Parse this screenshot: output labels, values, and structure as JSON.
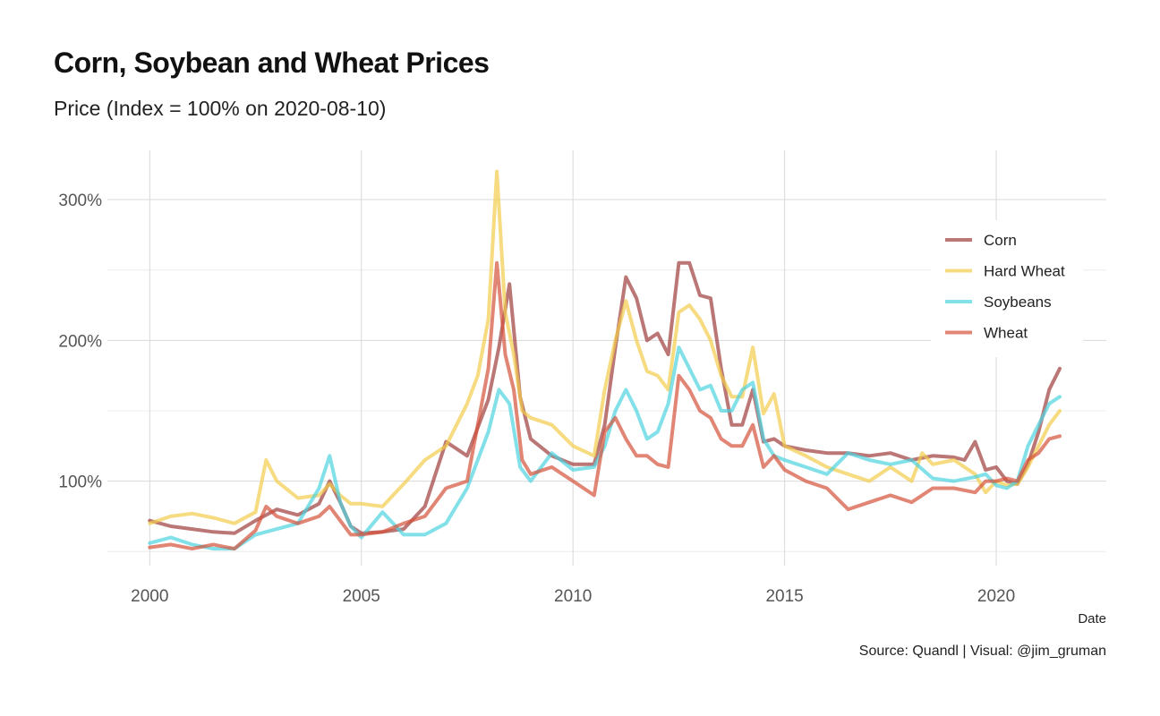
{
  "title": "Corn, Soybean and Wheat Prices",
  "subtitle": "Price (Index = 100% on 2020-08-10)",
  "caption": "Source: Quandl | Visual: @jim_gruman",
  "chart_data": {
    "type": "line",
    "xlabel": "Date",
    "ylabel": "",
    "x_ticks": [
      2000,
      2005,
      2010,
      2015,
      2020
    ],
    "y_ticks": [
      100,
      200,
      300
    ],
    "y_tick_labels": [
      "100%",
      "200%",
      "300%"
    ],
    "xlim": [
      1999.0,
      2022.6
    ],
    "ylim": [
      40,
      335
    ],
    "grid": true,
    "legend_position": "top-right",
    "series": [
      {
        "name": "Corn",
        "color": "#9E3D3A",
        "points": [
          [
            2000.0,
            72
          ],
          [
            2000.5,
            68
          ],
          [
            2001.0,
            66
          ],
          [
            2001.5,
            64
          ],
          [
            2002.0,
            63
          ],
          [
            2002.5,
            72
          ],
          [
            2003.0,
            80
          ],
          [
            2003.5,
            76
          ],
          [
            2004.0,
            84
          ],
          [
            2004.25,
            100
          ],
          [
            2004.5,
            85
          ],
          [
            2004.75,
            68
          ],
          [
            2005.0,
            63
          ],
          [
            2005.5,
            64
          ],
          [
            2006.0,
            66
          ],
          [
            2006.5,
            82
          ],
          [
            2007.0,
            128
          ],
          [
            2007.5,
            118
          ],
          [
            2008.0,
            158
          ],
          [
            2008.25,
            195
          ],
          [
            2008.5,
            240
          ],
          [
            2008.75,
            160
          ],
          [
            2009.0,
            130
          ],
          [
            2009.5,
            118
          ],
          [
            2010.0,
            112
          ],
          [
            2010.5,
            112
          ],
          [
            2010.75,
            140
          ],
          [
            2011.0,
            195
          ],
          [
            2011.25,
            245
          ],
          [
            2011.5,
            230
          ],
          [
            2011.75,
            200
          ],
          [
            2012.0,
            205
          ],
          [
            2012.25,
            190
          ],
          [
            2012.5,
            255
          ],
          [
            2012.75,
            255
          ],
          [
            2013.0,
            232
          ],
          [
            2013.25,
            230
          ],
          [
            2013.5,
            180
          ],
          [
            2013.75,
            140
          ],
          [
            2014.0,
            140
          ],
          [
            2014.25,
            165
          ],
          [
            2014.5,
            128
          ],
          [
            2014.75,
            130
          ],
          [
            2015.0,
            125
          ],
          [
            2015.5,
            122
          ],
          [
            2016.0,
            120
          ],
          [
            2016.5,
            120
          ],
          [
            2017.0,
            118
          ],
          [
            2017.5,
            120
          ],
          [
            2018.0,
            115
          ],
          [
            2018.5,
            118
          ],
          [
            2019.0,
            117
          ],
          [
            2019.25,
            115
          ],
          [
            2019.5,
            128
          ],
          [
            2019.75,
            108
          ],
          [
            2020.0,
            110
          ],
          [
            2020.25,
            100
          ],
          [
            2020.5,
            98
          ],
          [
            2020.75,
            112
          ],
          [
            2021.0,
            135
          ],
          [
            2021.25,
            165
          ],
          [
            2021.5,
            180
          ]
        ]
      },
      {
        "name": "Hard Wheat",
        "color": "#F2CC4C",
        "points": [
          [
            2000.0,
            70
          ],
          [
            2000.5,
            75
          ],
          [
            2001.0,
            77
          ],
          [
            2001.5,
            74
          ],
          [
            2002.0,
            70
          ],
          [
            2002.5,
            78
          ],
          [
            2002.75,
            115
          ],
          [
            2003.0,
            100
          ],
          [
            2003.5,
            88
          ],
          [
            2004.0,
            90
          ],
          [
            2004.25,
            98
          ],
          [
            2004.5,
            90
          ],
          [
            2004.75,
            84
          ],
          [
            2005.0,
            84
          ],
          [
            2005.5,
            82
          ],
          [
            2006.0,
            98
          ],
          [
            2006.5,
            115
          ],
          [
            2007.0,
            125
          ],
          [
            2007.5,
            155
          ],
          [
            2007.75,
            175
          ],
          [
            2008.0,
            215
          ],
          [
            2008.2,
            320
          ],
          [
            2008.4,
            220
          ],
          [
            2008.6,
            190
          ],
          [
            2008.8,
            150
          ],
          [
            2009.0,
            145
          ],
          [
            2009.5,
            140
          ],
          [
            2010.0,
            125
          ],
          [
            2010.5,
            118
          ],
          [
            2010.75,
            165
          ],
          [
            2011.0,
            200
          ],
          [
            2011.25,
            228
          ],
          [
            2011.5,
            200
          ],
          [
            2011.75,
            178
          ],
          [
            2012.0,
            175
          ],
          [
            2012.25,
            165
          ],
          [
            2012.5,
            220
          ],
          [
            2012.75,
            225
          ],
          [
            2013.0,
            215
          ],
          [
            2013.25,
            200
          ],
          [
            2013.5,
            175
          ],
          [
            2013.75,
            160
          ],
          [
            2014.0,
            160
          ],
          [
            2014.25,
            195
          ],
          [
            2014.5,
            148
          ],
          [
            2014.75,
            162
          ],
          [
            2015.0,
            125
          ],
          [
            2015.5,
            118
          ],
          [
            2016.0,
            110
          ],
          [
            2016.5,
            105
          ],
          [
            2017.0,
            100
          ],
          [
            2017.5,
            110
          ],
          [
            2018.0,
            100
          ],
          [
            2018.25,
            120
          ],
          [
            2018.5,
            112
          ],
          [
            2019.0,
            115
          ],
          [
            2019.5,
            105
          ],
          [
            2019.75,
            92
          ],
          [
            2020.0,
            100
          ],
          [
            2020.25,
            97
          ],
          [
            2020.5,
            98
          ],
          [
            2020.75,
            110
          ],
          [
            2021.0,
            125
          ],
          [
            2021.25,
            140
          ],
          [
            2021.5,
            150
          ]
        ]
      },
      {
        "name": "Soybeans",
        "color": "#4DD3E0",
        "points": [
          [
            2000.0,
            56
          ],
          [
            2000.5,
            60
          ],
          [
            2001.0,
            55
          ],
          [
            2001.5,
            52
          ],
          [
            2002.0,
            52
          ],
          [
            2002.5,
            62
          ],
          [
            2003.0,
            66
          ],
          [
            2003.5,
            70
          ],
          [
            2004.0,
            95
          ],
          [
            2004.25,
            118
          ],
          [
            2004.5,
            85
          ],
          [
            2004.75,
            68
          ],
          [
            2005.0,
            60
          ],
          [
            2005.5,
            78
          ],
          [
            2006.0,
            62
          ],
          [
            2006.5,
            62
          ],
          [
            2007.0,
            70
          ],
          [
            2007.5,
            95
          ],
          [
            2008.0,
            135
          ],
          [
            2008.25,
            165
          ],
          [
            2008.5,
            155
          ],
          [
            2008.75,
            110
          ],
          [
            2009.0,
            100
          ],
          [
            2009.5,
            120
          ],
          [
            2010.0,
            108
          ],
          [
            2010.5,
            110
          ],
          [
            2010.75,
            125
          ],
          [
            2011.0,
            150
          ],
          [
            2011.25,
            165
          ],
          [
            2011.5,
            150
          ],
          [
            2011.75,
            130
          ],
          [
            2012.0,
            135
          ],
          [
            2012.25,
            155
          ],
          [
            2012.5,
            195
          ],
          [
            2012.75,
            180
          ],
          [
            2013.0,
            165
          ],
          [
            2013.25,
            168
          ],
          [
            2013.5,
            150
          ],
          [
            2013.75,
            150
          ],
          [
            2014.0,
            165
          ],
          [
            2014.25,
            170
          ],
          [
            2014.5,
            130
          ],
          [
            2014.75,
            118
          ],
          [
            2015.0,
            115
          ],
          [
            2015.5,
            110
          ],
          [
            2016.0,
            105
          ],
          [
            2016.5,
            120
          ],
          [
            2017.0,
            115
          ],
          [
            2017.5,
            112
          ],
          [
            2018.0,
            115
          ],
          [
            2018.5,
            102
          ],
          [
            2019.0,
            100
          ],
          [
            2019.5,
            103
          ],
          [
            2019.75,
            105
          ],
          [
            2020.0,
            97
          ],
          [
            2020.25,
            95
          ],
          [
            2020.5,
            100
          ],
          [
            2020.75,
            125
          ],
          [
            2021.0,
            140
          ],
          [
            2021.25,
            155
          ],
          [
            2021.5,
            160
          ]
        ]
      },
      {
        "name": "Wheat",
        "color": "#D4513B",
        "points": [
          [
            2000.0,
            53
          ],
          [
            2000.5,
            55
          ],
          [
            2001.0,
            52
          ],
          [
            2001.5,
            55
          ],
          [
            2002.0,
            52
          ],
          [
            2002.5,
            65
          ],
          [
            2002.75,
            82
          ],
          [
            2003.0,
            75
          ],
          [
            2003.5,
            70
          ],
          [
            2004.0,
            75
          ],
          [
            2004.25,
            82
          ],
          [
            2004.5,
            72
          ],
          [
            2004.75,
            62
          ],
          [
            2005.0,
            62
          ],
          [
            2005.5,
            64
          ],
          [
            2006.0,
            70
          ],
          [
            2006.5,
            75
          ],
          [
            2007.0,
            95
          ],
          [
            2007.5,
            100
          ],
          [
            2008.0,
            180
          ],
          [
            2008.2,
            255
          ],
          [
            2008.4,
            190
          ],
          [
            2008.6,
            165
          ],
          [
            2008.8,
            115
          ],
          [
            2009.0,
            105
          ],
          [
            2009.5,
            110
          ],
          [
            2010.0,
            100
          ],
          [
            2010.5,
            90
          ],
          [
            2010.75,
            135
          ],
          [
            2011.0,
            145
          ],
          [
            2011.25,
            130
          ],
          [
            2011.5,
            118
          ],
          [
            2011.75,
            118
          ],
          [
            2012.0,
            112
          ],
          [
            2012.25,
            110
          ],
          [
            2012.5,
            175
          ],
          [
            2012.75,
            165
          ],
          [
            2013.0,
            150
          ],
          [
            2013.25,
            145
          ],
          [
            2013.5,
            130
          ],
          [
            2013.75,
            125
          ],
          [
            2014.0,
            125
          ],
          [
            2014.25,
            140
          ],
          [
            2014.5,
            110
          ],
          [
            2014.75,
            118
          ],
          [
            2015.0,
            108
          ],
          [
            2015.5,
            100
          ],
          [
            2016.0,
            95
          ],
          [
            2016.5,
            80
          ],
          [
            2017.0,
            85
          ],
          [
            2017.5,
            90
          ],
          [
            2018.0,
            85
          ],
          [
            2018.5,
            95
          ],
          [
            2019.0,
            95
          ],
          [
            2019.5,
            92
          ],
          [
            2019.75,
            100
          ],
          [
            2020.0,
            100
          ],
          [
            2020.25,
            102
          ],
          [
            2020.5,
            100
          ],
          [
            2020.75,
            115
          ],
          [
            2021.0,
            120
          ],
          [
            2021.25,
            130
          ],
          [
            2021.5,
            132
          ]
        ]
      }
    ]
  }
}
